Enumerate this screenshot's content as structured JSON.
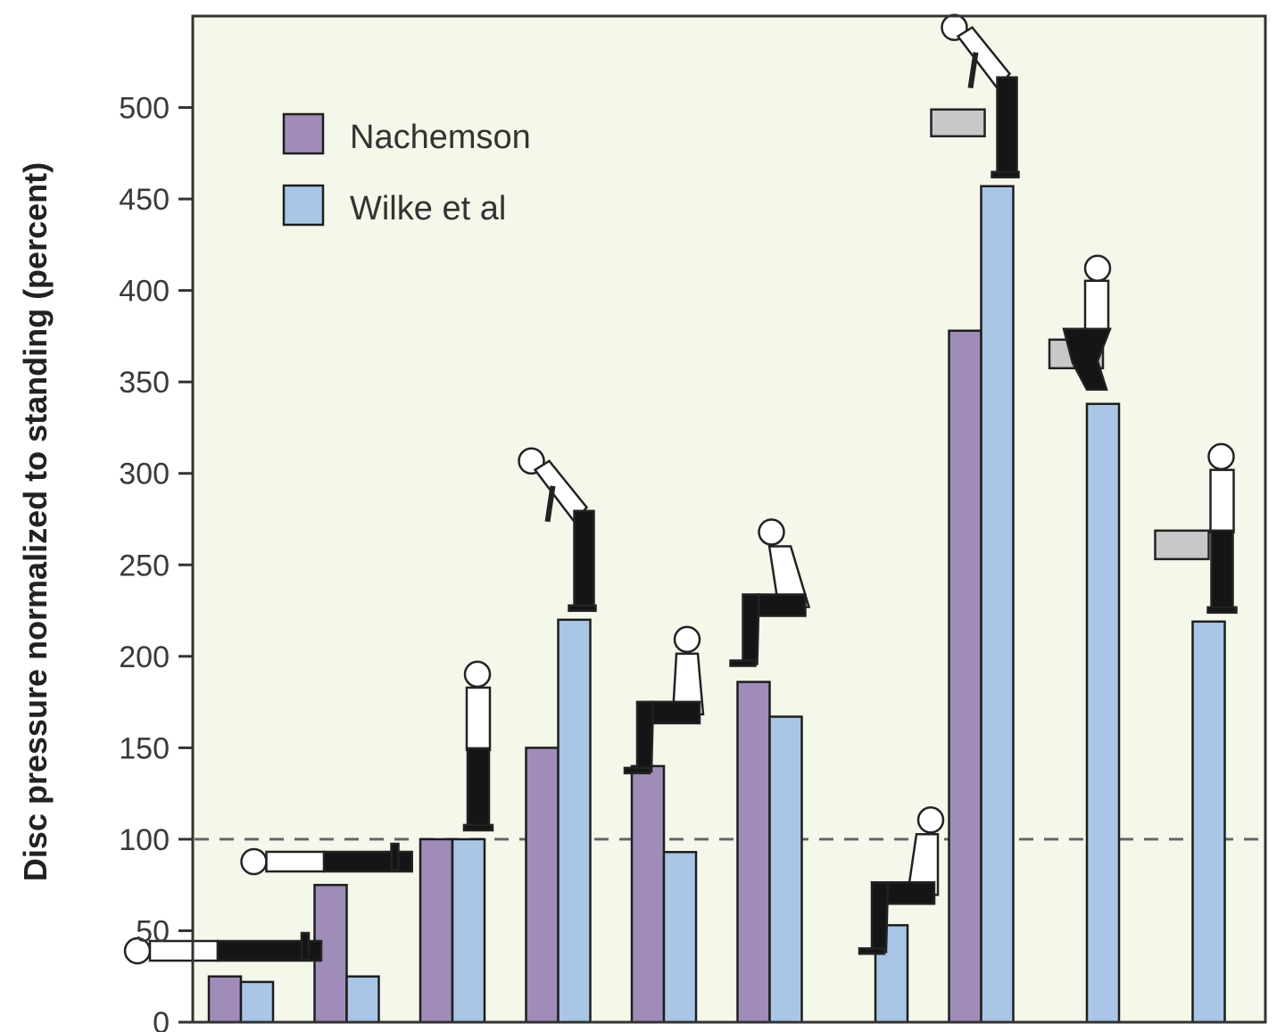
{
  "chart_data": {
    "type": "bar",
    "title": "",
    "xlabel": "",
    "ylabel": "Disc pressure normalized to standing (percent)",
    "ylim": [
      0,
      550
    ],
    "yticks": [
      0,
      50,
      100,
      150,
      200,
      250,
      300,
      350,
      400,
      450,
      500
    ],
    "ytick_labels": [
      "0",
      "50",
      "100",
      "150",
      "200",
      "250",
      "300",
      "350",
      "400",
      "450",
      "500"
    ],
    "reference_line": {
      "value": 100,
      "style": "dashed"
    },
    "categories": [
      "lying supine",
      "lying on side",
      "standing",
      "bending forward",
      "sitting upright",
      "sitting bent forward",
      "sitting reclined",
      "lifting with round back",
      "lifting with bent knees",
      "holding weight close to body"
    ],
    "series": [
      {
        "name": "Nachemson",
        "color": "#a08cb8",
        "values": [
          25,
          75,
          100,
          150,
          140,
          186,
          null,
          378,
          null,
          null
        ]
      },
      {
        "name": "Wilke et al",
        "color": "#a9c6e6",
        "values": [
          22,
          25,
          100,
          220,
          93,
          167,
          53,
          457,
          338,
          219
        ]
      }
    ],
    "legend": {
      "position": "top-left",
      "entries": [
        "Nachemson",
        "Wilke et al"
      ]
    },
    "colors": {
      "plot_background": "#f3f8ea",
      "frame": "#333333",
      "posture_dark": "#151515",
      "posture_light": "#ffffff",
      "box": "#c8c8c8"
    }
  }
}
